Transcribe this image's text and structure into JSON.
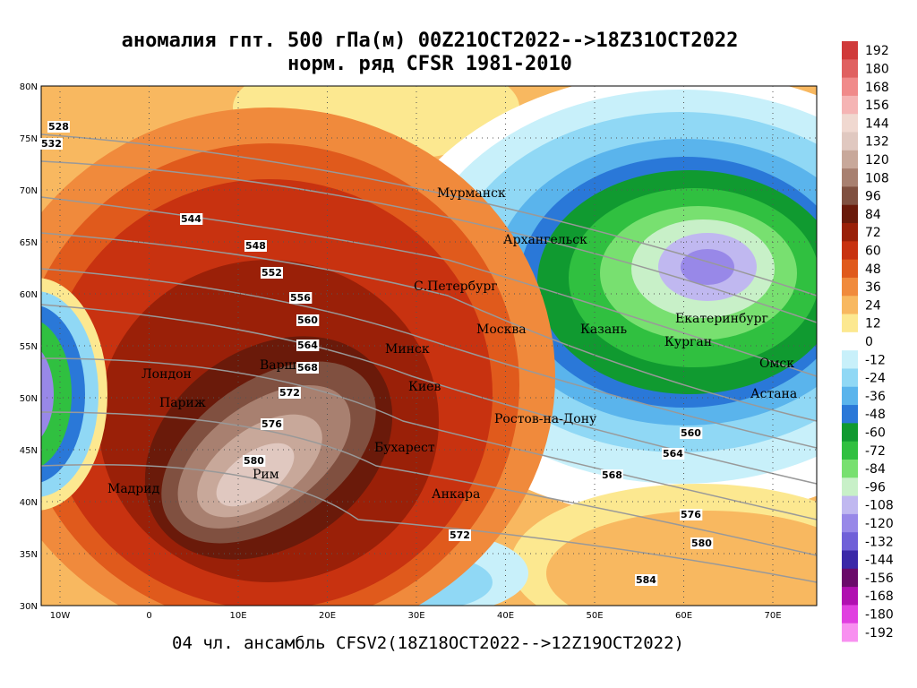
{
  "header": {
    "title_lines": [
      "аномалия гпт. 500 гПа(м) 00Z21OCT2022-->18Z31OCT2022",
      "норм. ряд CFSR 1981-2010"
    ]
  },
  "map": {
    "lat_ticks": [
      "80N",
      "75N",
      "70N",
      "65N",
      "60N",
      "55N",
      "50N",
      "45N",
      "40N",
      "35N",
      "30N"
    ],
    "lon_ticks": [
      "10W",
      "0",
      "10E",
      "20E",
      "30E",
      "40E",
      "50E",
      "60E",
      "70E"
    ],
    "cities": [
      "Мурманск",
      "Архангельск",
      "С.Петербург",
      "Москва",
      "Казань",
      "Екатеринбург",
      "Курган",
      "Омск",
      "Астана",
      "Минск",
      "Киев",
      "Ростов-на-Дону",
      "Бухарест",
      "Анкара",
      "Рим",
      "Мадрид",
      "Париж",
      "Лондон",
      "Варшава"
    ],
    "contour_labels": [
      528,
      532,
      544,
      548,
      552,
      556,
      560,
      564,
      568,
      572,
      576,
      580,
      560,
      564,
      568,
      576,
      580,
      584,
      572
    ]
  },
  "colorbar": {
    "labels": [
      192,
      180,
      168,
      156,
      144,
      132,
      120,
      108,
      96,
      84,
      72,
      60,
      48,
      36,
      24,
      12,
      0,
      -12,
      -24,
      -36,
      -48,
      -60,
      -72,
      -84,
      -96,
      -108,
      -120,
      -132,
      -144,
      -156,
      -168,
      -180,
      -192
    ],
    "colors": [
      "#d03a3a",
      "#e06060",
      "#f08a8a",
      "#f5b4b4",
      "#f0d8d0",
      "#e0c8c0",
      "#c8a89a",
      "#a88070",
      "#805040",
      "#6a1a0a",
      "#9a2008",
      "#c83210",
      "#e05a1c",
      "#f08a3c",
      "#f8b860",
      "#fce890",
      "#ffffff",
      "#c8f0fa",
      "#90d8f5",
      "#5ab4ec",
      "#2a78d8",
      "#109a30",
      "#30c040",
      "#78e070",
      "#c8f0c8",
      "#c0b8f0",
      "#9888e8",
      "#7060d8",
      "#3a28a8",
      "#6a0a6a",
      "#b010b0",
      "#e040e0",
      "#f890f0"
    ]
  },
  "footer": {
    "text": "04 чл. ансамбль CFSV2(18Z18OCT2022-->12Z19OCT2022)"
  }
}
